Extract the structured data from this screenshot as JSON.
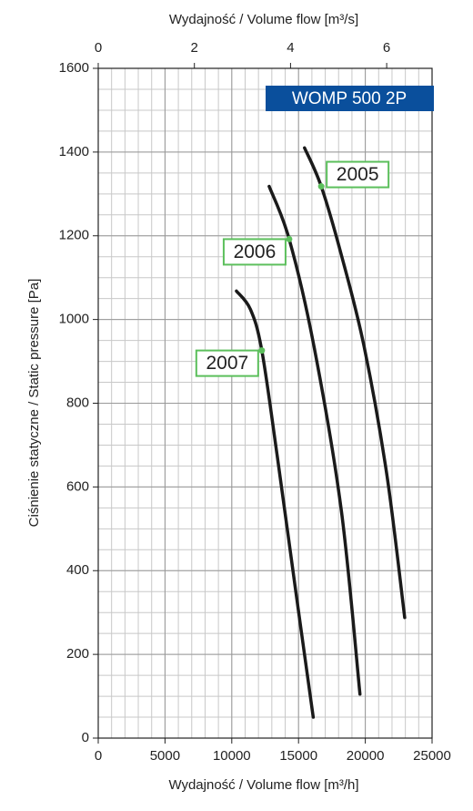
{
  "chart_data": {
    "type": "line",
    "title": "WOMP 500 2P",
    "x_label": "Wydajność / Volume flow [m³/h]",
    "x2_label": "Wydajność / Volume flow [m³/s]",
    "y_label": "Ciśnienie statyczne / Static pressure [Pa]",
    "xlim": [
      0,
      25000
    ],
    "xticks": [
      0,
      5000,
      10000,
      15000,
      20000,
      25000
    ],
    "x2lim": [
      0,
      6.944
    ],
    "x2ticks": [
      0,
      2,
      4,
      6
    ],
    "ylim": [
      0,
      1600
    ],
    "yticks": [
      0,
      200,
      400,
      600,
      800,
      1000,
      1200,
      1400,
      1600
    ],
    "grid": true,
    "x_minor_step": 1000,
    "y_minor_step": 50,
    "series": [
      {
        "name": "2005",
        "color": "#1a1a1a",
        "marker_color": "#5cbf5c",
        "label_index": 1,
        "x": [
          15450,
          16700,
          18200,
          19900,
          21600,
          22950
        ],
        "values": [
          1410,
          1318,
          1155,
          937,
          632,
          288
        ]
      },
      {
        "name": "2006",
        "color": "#1a1a1a",
        "marker_color": "#5cbf5c",
        "label_index": 1,
        "x": [
          12800,
          14300,
          16150,
          18200,
          19600
        ],
        "values": [
          1318,
          1192,
          937,
          545,
          105
        ]
      },
      {
        "name": "2007",
        "color": "#1a1a1a",
        "marker_color": "#5cbf5c",
        "label_index": 2,
        "x": [
          10350,
          11400,
          12250,
          13400,
          14800,
          16100
        ],
        "values": [
          1068,
          1024,
          926,
          675,
          349,
          50
        ]
      }
    ]
  }
}
